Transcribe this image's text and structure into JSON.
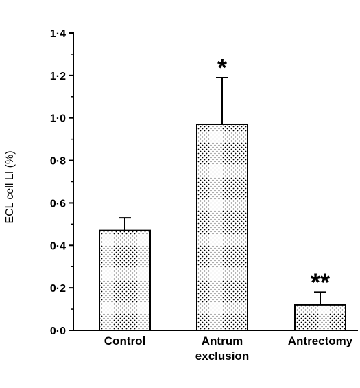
{
  "chart_data": {
    "type": "bar",
    "ylabel": "ECL cell LI (%)",
    "xlabel": "",
    "title": "",
    "ylim": [
      0,
      1.4
    ],
    "y_ticks": [
      "0·0",
      "0·2",
      "0·4",
      "0·6",
      "0·8",
      "1·0",
      "1·2",
      "1·4"
    ],
    "categories": [
      {
        "label": "Control",
        "lines": [
          "Control"
        ]
      },
      {
        "label": "Antrum exclusion",
        "lines": [
          "Antrum",
          "exclusion"
        ]
      },
      {
        "label": "Antrectomy",
        "lines": [
          "Antrectomy"
        ]
      }
    ],
    "values": [
      0.47,
      0.97,
      0.12
    ],
    "error": [
      0.06,
      0.22,
      0.06
    ],
    "annotations": [
      "",
      "*",
      "**"
    ],
    "grid": false,
    "bar_fill": "dotted",
    "colors": {
      "axis": "#000000",
      "bar_edge": "#000000",
      "bar_fill": "#ffffff",
      "dot": "#000000"
    }
  }
}
